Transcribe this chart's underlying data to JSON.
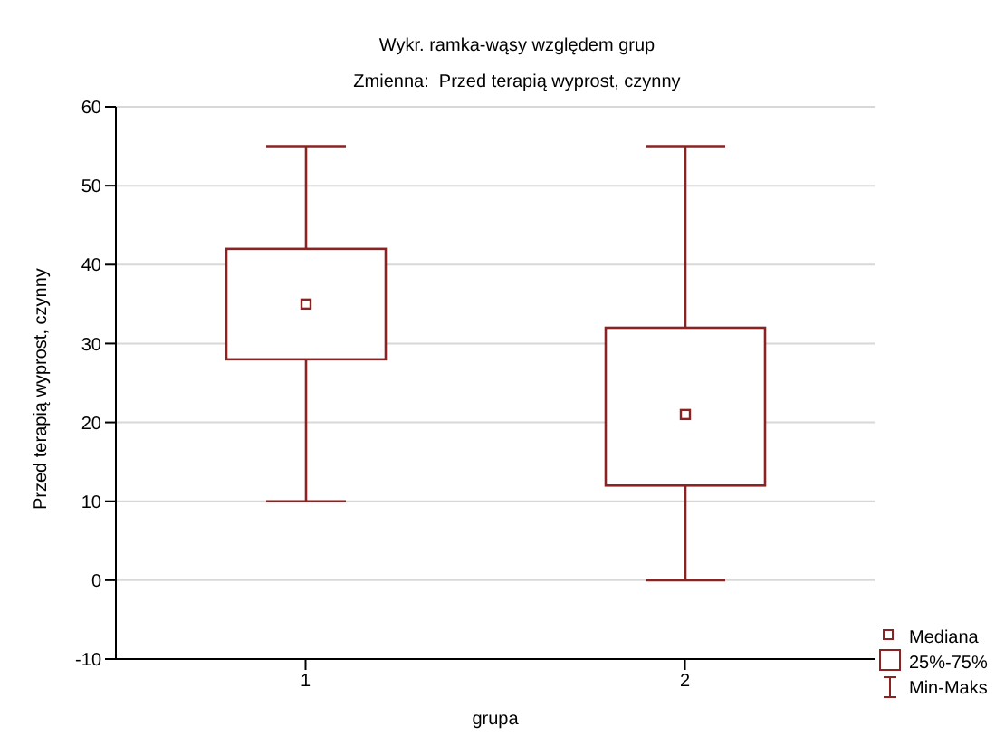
{
  "chart_data": {
    "type": "box",
    "title": "Wykr. ramka-wąsy względem grup",
    "subtitle": "Zmienna:  Przed terapią wyprost, czynny",
    "xlabel": "grupa",
    "ylabel": "Przed terapią wyprost, czynny",
    "categories": [
      "1",
      "2"
    ],
    "boxes": [
      {
        "low": 10,
        "q1": 28,
        "median": 35,
        "q3": 42,
        "high": 55
      },
      {
        "low": 0,
        "q1": 12,
        "median": 21,
        "q3": 32,
        "high": 55
      }
    ],
    "color": "#8b2323",
    "ylim": [
      -10,
      60
    ],
    "yticks": [
      -10,
      0,
      10,
      20,
      30,
      40,
      50,
      60
    ],
    "grid": "y",
    "annotations": [
      "Mediana",
      "25%-75%",
      "Min-Maks"
    ]
  }
}
